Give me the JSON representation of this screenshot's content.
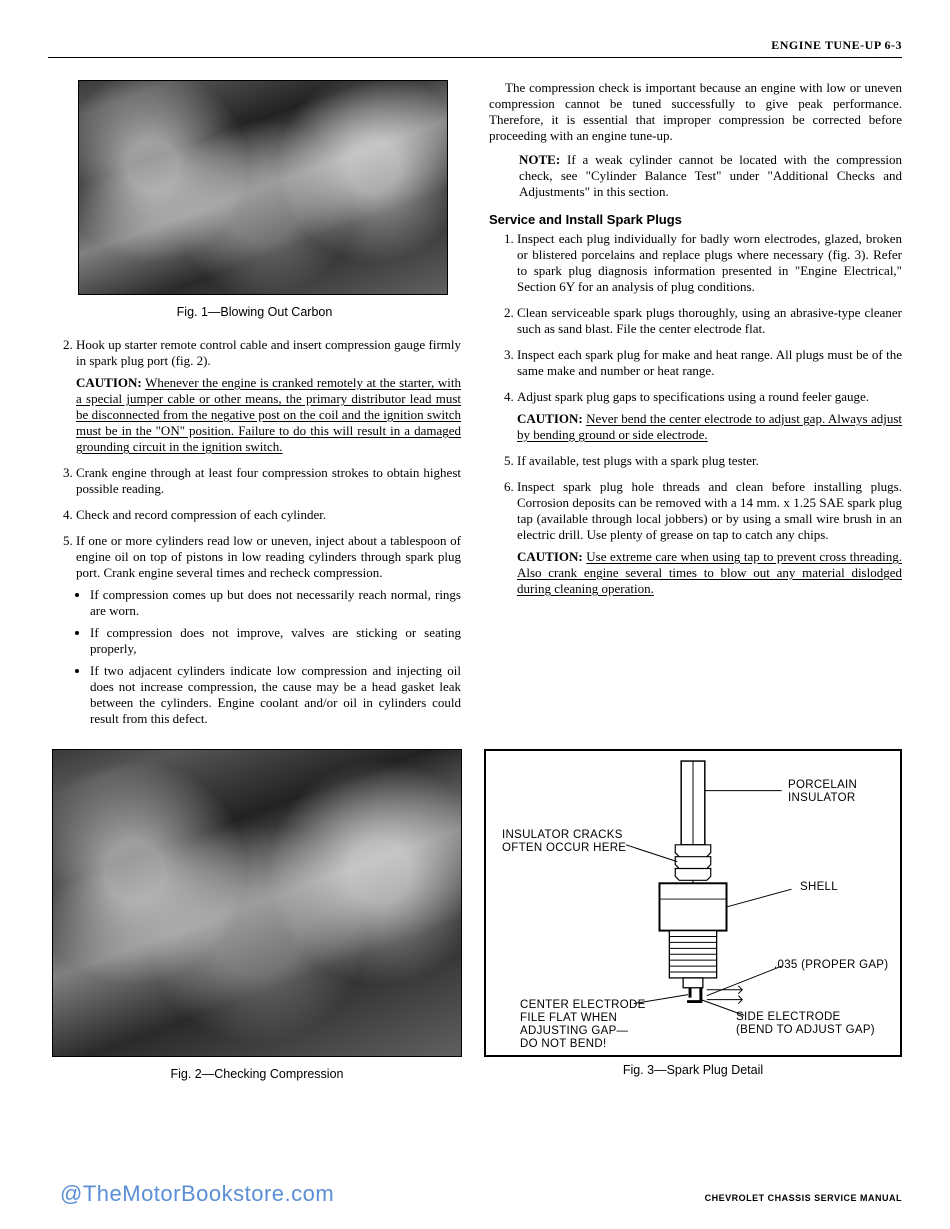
{
  "header": {
    "title": "ENGINE TUNE-UP 6-3"
  },
  "figures": {
    "fig1": {
      "caption": "Fig. 1—Blowing Out Carbon"
    },
    "fig2": {
      "caption": "Fig. 2—Checking Compression"
    },
    "fig3": {
      "caption": "Fig. 3—Spark Plug Detail"
    }
  },
  "left": {
    "item2": "Hook up starter remote control cable and insert compression gauge firmly in spark plug port (fig. 2).",
    "caution2_label": "CAUTION:",
    "caution2_text": "Whenever the engine is cranked remotely at the starter, with a special jumper cable or other means, the primary distributor lead must be disconnected from the negative post on the coil and the ignition switch must be in the \"ON\" position. Failure to do this will result in a damaged grounding circuit in the ignition switch.",
    "item3": "Crank engine through at least four compression strokes to obtain highest possible reading.",
    "item4": "Check and record compression of each cylinder.",
    "item5": "If one or more cylinders read low or uneven, inject about a tablespoon of engine oil on top of pistons in low reading cylinders through spark plug port. Crank engine several times and recheck compression.",
    "b1": "If compression comes up but does not necessarily reach normal, rings are worn.",
    "b2": "If compression does not improve, valves are sticking or seating properly,",
    "b3": "If two adjacent cylinders indicate low compression and injecting oil does not increase compression, the cause may be a head gasket leak between the cylinders. Engine coolant and/or oil in cylinders could result from this defect."
  },
  "right": {
    "intro": "The compression check is important because an engine with low or uneven compression cannot be tuned successfully to give peak performance. Therefore, it is essential that improper compression be corrected before proceeding with an engine tune-up.",
    "note_label": "NOTE:",
    "note_text": "If a weak cylinder cannot be located with the compression check, see \"Cylinder Balance Test\" under \"Additional Checks and Adjustments\" in this section.",
    "subhead": "Service and Install Spark Plugs",
    "r1": "Inspect each plug individually for badly worn electrodes, glazed, broken or blistered porcelains and replace plugs where necessary (fig. 3). Refer to spark plug diagnosis information presented in \"Engine Electrical,\" Section 6Y for an analysis of plug conditions.",
    "r2": "Clean serviceable spark plugs thoroughly, using an abrasive-type cleaner such as sand blast. File the center electrode flat.",
    "r3": "Inspect each spark plug for make and heat range. All plugs must be of the same make and number or heat range.",
    "r4": "Adjust spark plug gaps to specifications using a round feeler gauge.",
    "caution4_label": "CAUTION:",
    "caution4_text": "Never bend the center electrode to adjust gap. Always adjust by bending ground or side electrode.",
    "r5": "If available, test plugs with a spark plug tester.",
    "r6": "Inspect spark plug hole threads and clean before installing plugs. Corrosion deposits can be removed with a 14 mm. x 1.25 SAE spark plug tap (available through local jobbers) or by using a small wire brush in an electric drill. Use plenty of grease on tap to catch any chips.",
    "caution6_label": "CAUTION:",
    "caution6_text": "Use extreme care when using tap to prevent cross threading. Also crank engine several times to blow out any material dislodged during cleaning operation."
  },
  "diagram": {
    "labels": {
      "porcelain": "PORCELAIN\nINSULATOR",
      "cracks": "INSULATOR CRACKS\nOFTEN OCCUR HERE",
      "shell": "SHELL",
      "gap": ".035 (PROPER GAP)",
      "center": "CENTER ELECTRODE",
      "file": "FILE FLAT WHEN\nADJUSTING GAP—\nDO NOT BEND!",
      "side": "SIDE ELECTRODE\n(BEND TO ADJUST GAP)"
    }
  },
  "watermark": "@TheMotorBookstore.com",
  "footer": "CHEVROLET CHASSIS SERVICE MANUAL"
}
